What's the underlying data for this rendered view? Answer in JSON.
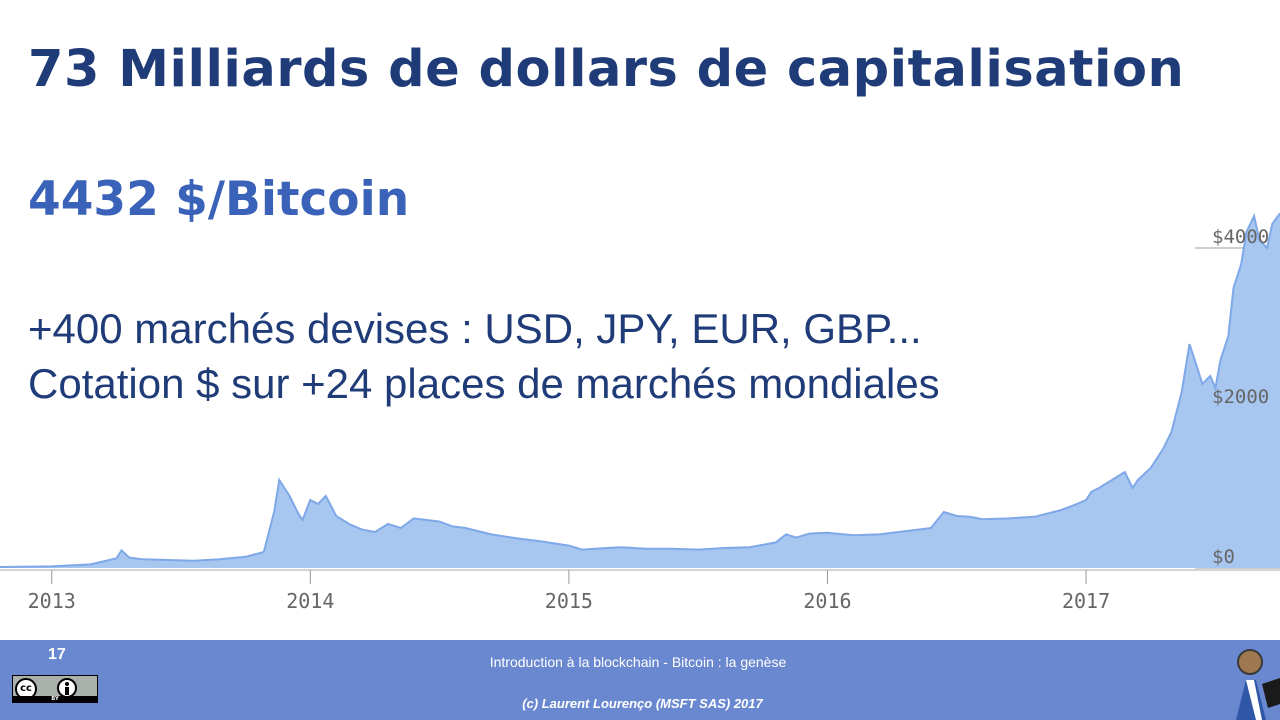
{
  "slide": {
    "title": "73 Milliards de dollars de capitalisation",
    "price": "4432 $/Bitcoin",
    "line1": "+400 marchés devises : USD, JPY, EUR, GBP...",
    "line2": "Cotation $ sur +24 places de marchés mondiales"
  },
  "footer": {
    "page_number": "17",
    "subtitle": "Introduction  à la blockchain - Bitcoin : la genèse",
    "copyright": "(c) Laurent Lourenço (MSFT SAS) 2017",
    "license_text": "BY",
    "background_color": "#6a88d0"
  },
  "chart_data": {
    "type": "area",
    "title": "",
    "xlabel": "",
    "ylabel": "",
    "x_ticks": [
      "2013",
      "2014",
      "2015",
      "2016",
      "2017"
    ],
    "y_ticks": [
      {
        "value": 0,
        "label": "$0"
      },
      {
        "value": 2000,
        "label": "$2000"
      },
      {
        "value": 4000,
        "label": "$4000"
      }
    ],
    "ylim": [
      0,
      4800
    ],
    "xlim": [
      2012.8,
      2017.75
    ],
    "fill_color": "#a7c6f0",
    "line_color": "#7fa8e8",
    "series": [
      {
        "x": [
          2012.8,
          2013.0,
          2013.15,
          2013.25,
          2013.27,
          2013.3,
          2013.35,
          2013.45,
          2013.55,
          2013.65,
          2013.75,
          2013.82,
          2013.86,
          2013.88,
          2013.9,
          2013.92,
          2013.95,
          2013.97,
          2014.0,
          2014.03,
          2014.06,
          2014.1,
          2014.15,
          2014.2,
          2014.25,
          2014.3,
          2014.35,
          2014.4,
          2014.45,
          2014.5,
          2014.55,
          2014.6,
          2014.7,
          2014.8,
          2014.9,
          2015.0,
          2015.05,
          2015.1,
          2015.2,
          2015.3,
          2015.4,
          2015.5,
          2015.6,
          2015.7,
          2015.8,
          2015.84,
          2015.88,
          2015.93,
          2016.0,
          2016.1,
          2016.2,
          2016.3,
          2016.4,
          2016.45,
          2016.5,
          2016.55,
          2016.6,
          2016.7,
          2016.8,
          2016.9,
          2016.95,
          2017.0,
          2017.02,
          2017.05,
          2017.1,
          2017.15,
          2017.18,
          2017.2,
          2017.25,
          2017.3,
          2017.33,
          2017.37,
          2017.4,
          2017.43,
          2017.45,
          2017.48,
          2017.5,
          2017.52,
          2017.55,
          2017.57,
          2017.6,
          2017.62,
          2017.65,
          2017.67,
          2017.7,
          2017.72,
          2017.75
        ],
        "y": [
          13,
          20,
          45,
          120,
          220,
          130,
          110,
          100,
          90,
          110,
          140,
          200,
          700,
          1100,
          1000,
          900,
          700,
          600,
          850,
          800,
          900,
          650,
          550,
          480,
          450,
          550,
          500,
          620,
          600,
          580,
          520,
          500,
          420,
          370,
          330,
          280,
          230,
          240,
          260,
          240,
          240,
          230,
          250,
          260,
          320,
          420,
          380,
          430,
          440,
          410,
          420,
          460,
          500,
          700,
          650,
          640,
          610,
          620,
          640,
          720,
          780,
          850,
          950,
          1000,
          1100,
          1200,
          1000,
          1100,
          1250,
          1500,
          1700,
          2200,
          2800,
          2500,
          2300,
          2400,
          2250,
          2600,
          2900,
          3500,
          3800,
          4200,
          4400,
          4100,
          4000,
          4300,
          4432
        ]
      }
    ]
  }
}
